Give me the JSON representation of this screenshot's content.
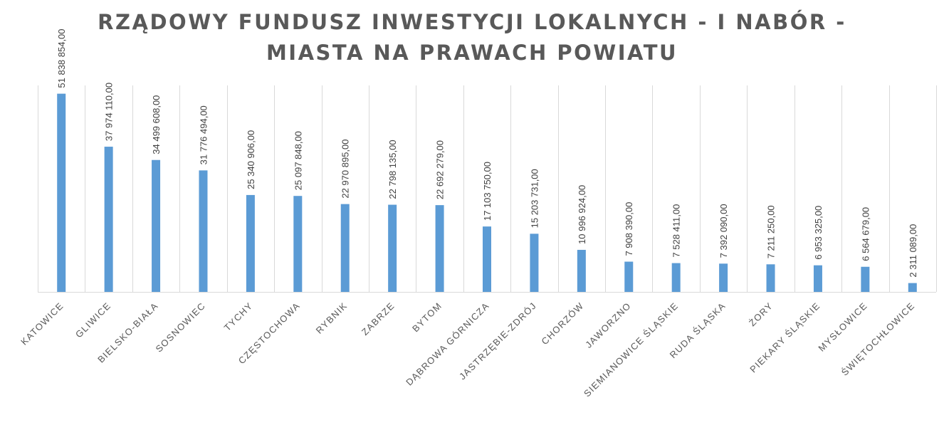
{
  "chart_data": {
    "type": "bar",
    "title_lines": [
      "RZĄDOWY FUNDUSZ INWESTYCJI LOKALNYCH - I NABÓR -",
      "MIASTA NA PRAWACH POWIATU"
    ],
    "xlabel": "",
    "ylabel": "",
    "ylim": [
      0,
      54000000
    ],
    "grid": "vertical",
    "legend": "none",
    "bar_color": "#5b9bd5",
    "categories": [
      "KATOWICE",
      "GLIWICE",
      "BIELSKO-BIAŁA",
      "SOSNOWIEC",
      "TYCHY",
      "CZĘSTOCHOWA",
      "RYBNIK",
      "ZABRZE",
      "BYTOM",
      "DĄBROWA GÓRNICZA",
      "JASTRZĘBIE-ZDRÓJ",
      "CHORZÓW",
      "JAWORZNO",
      "SIEMIANOWICE ŚLĄSKIE",
      "RUDA ŚLĄSKA",
      "ŻORY",
      "PIEKARY ŚLĄSKIE",
      "MYSŁOWICE",
      "ŚWIĘTOCHŁOWICE"
    ],
    "values": [
      51838854,
      37974110,
      34499608,
      31776494,
      25340906,
      25097848,
      22970895,
      22798135,
      22692279,
      17103750,
      15203731,
      10996924,
      7908390,
      7528411,
      7392090,
      7211250,
      6953325,
      6564679,
      2311089
    ],
    "data_labels": [
      "51 838 854,00",
      "37 974 110,00",
      "34 499 608,00",
      "31 776 494,00",
      "25 340 906,00",
      "25 097 848,00",
      "22 970 895,00",
      "22 798 135,00",
      "22 692 279,00",
      "17 103 750,00",
      "15 203 731,00",
      "10 996 924,00",
      "7 908 390,00",
      "7 528 411,00",
      "7 392 090,00",
      "7 211 250,00",
      "6 953 325,00",
      "6 564 679,00",
      "2 311 089,00"
    ]
  }
}
